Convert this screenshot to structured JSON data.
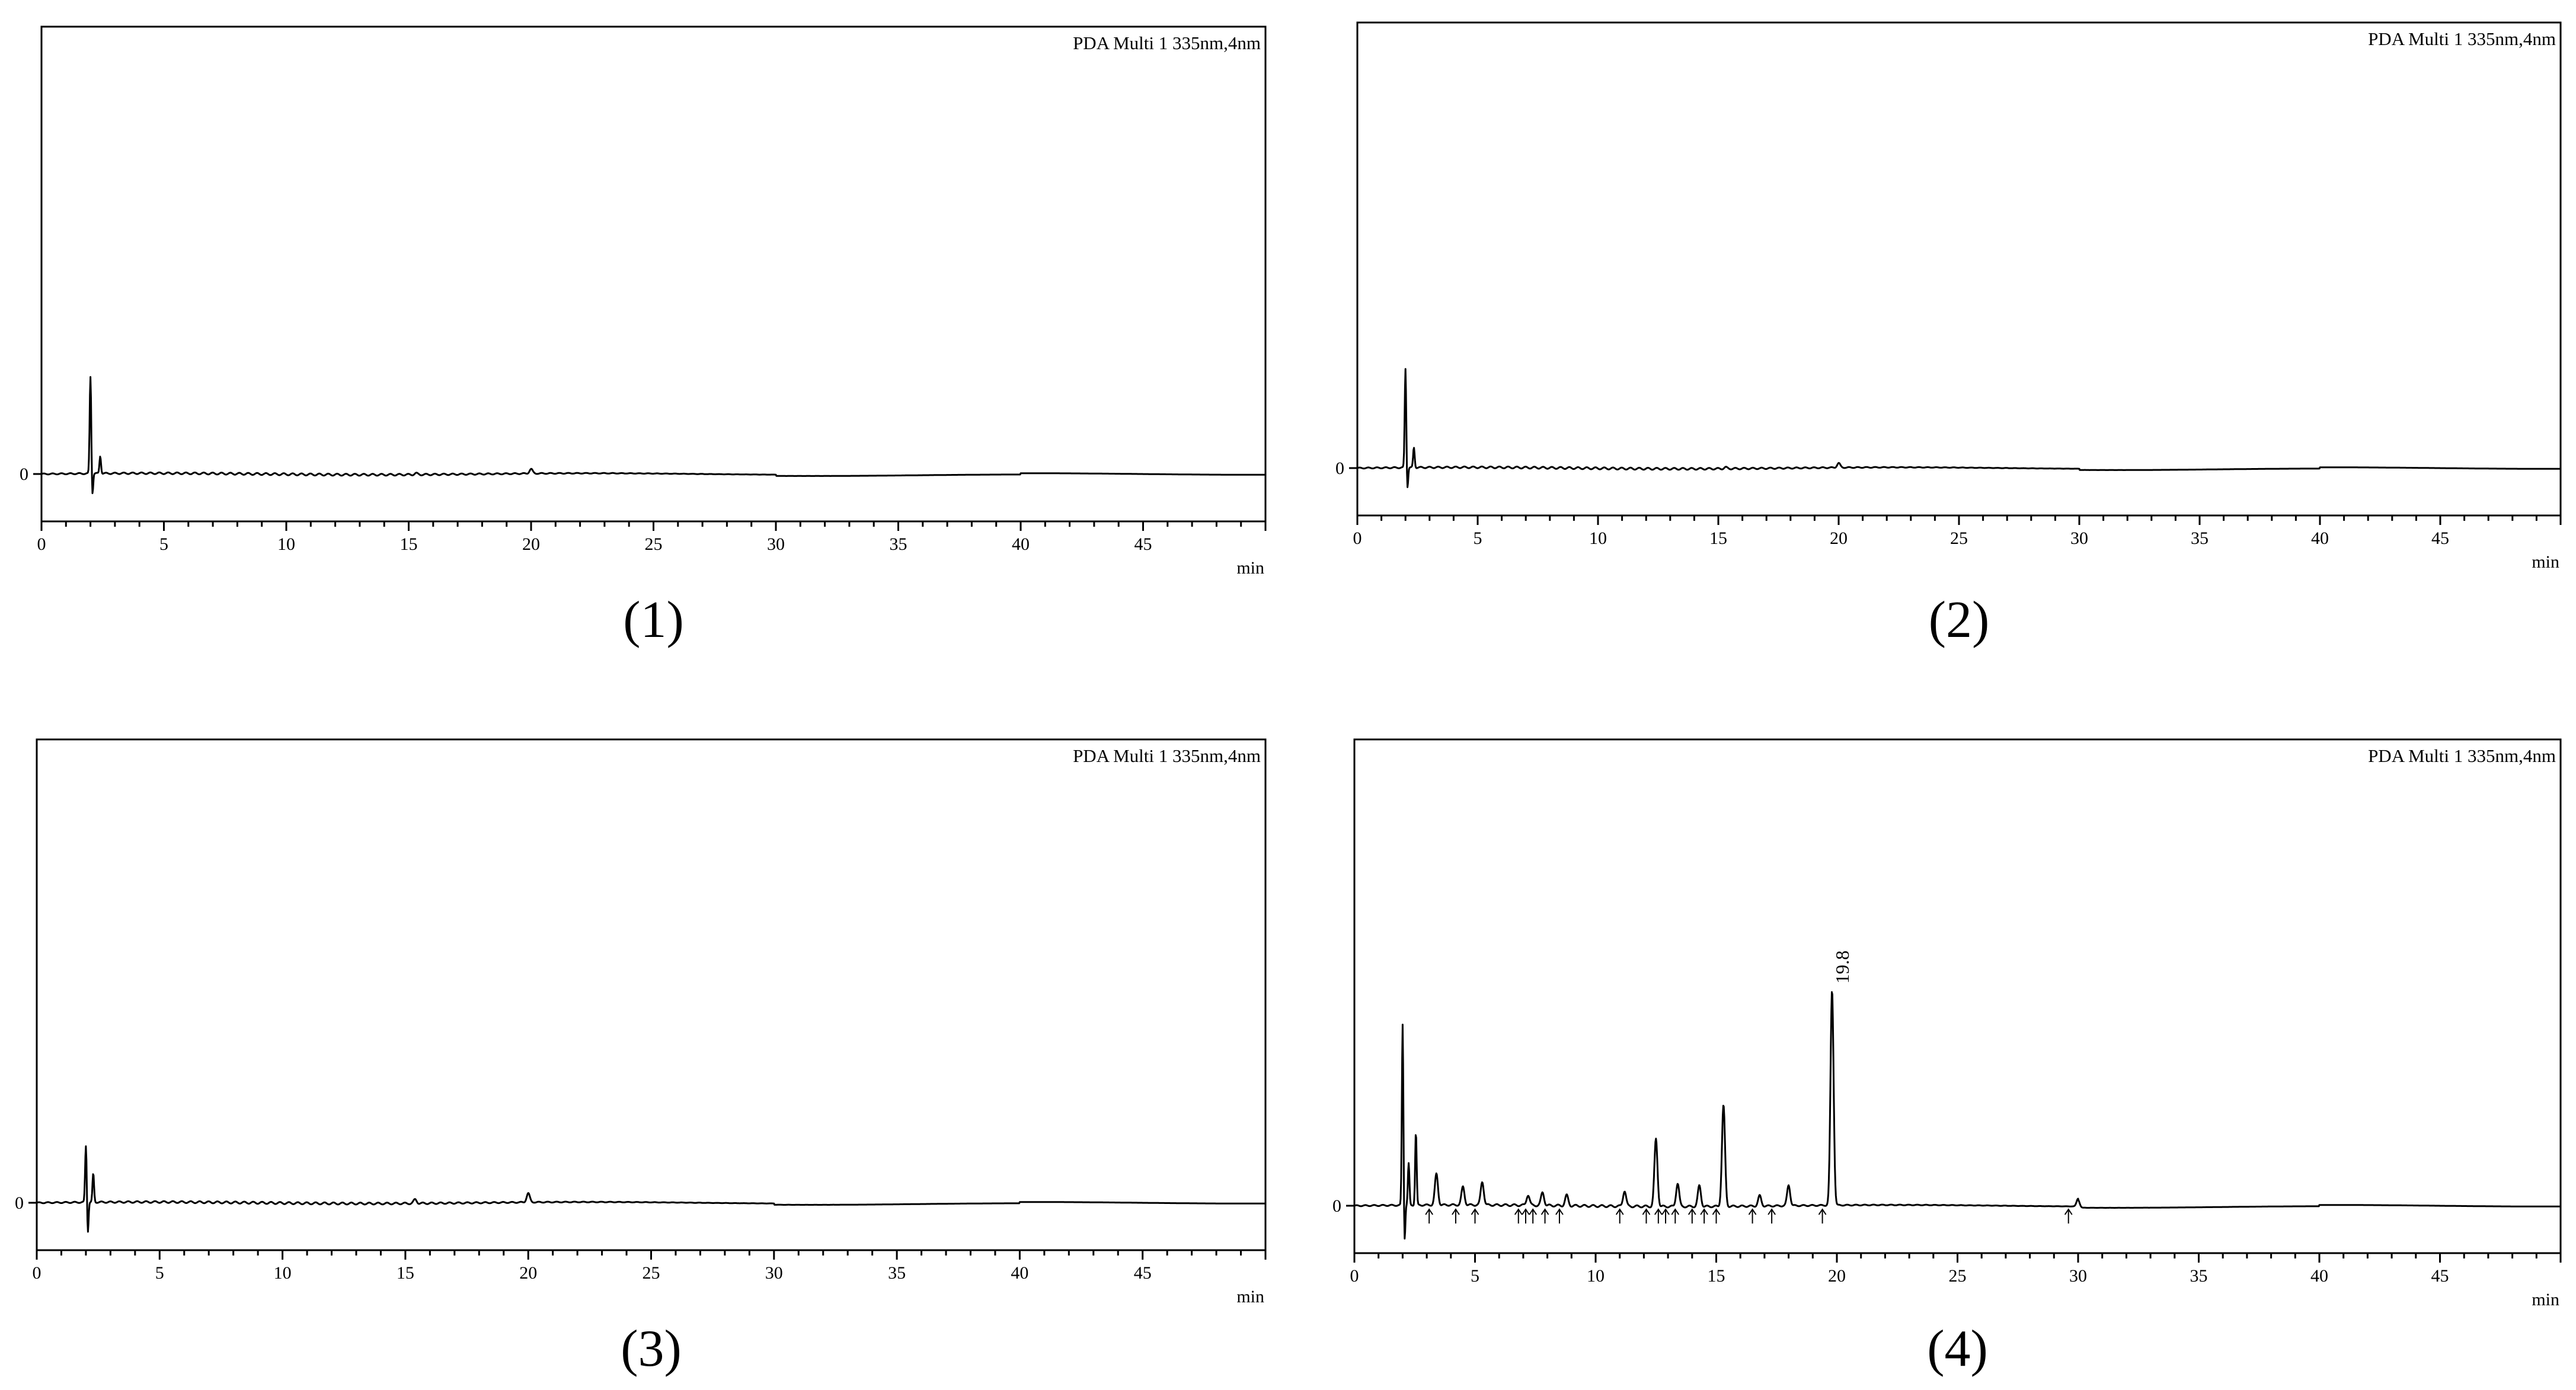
{
  "chart_data": [
    {
      "type": "line",
      "caption": "(1)",
      "detector": "PDA Multi 1 335nm,4nm",
      "xlabel": "min",
      "xlim": [
        0,
        50
      ],
      "xticks": [
        0,
        5,
        10,
        15,
        20,
        25,
        30,
        35,
        40,
        45
      ],
      "yticks": [
        0
      ],
      "ylim": [
        -1,
        18
      ],
      "grid": false,
      "peaks": [
        {
          "rt": 2.0,
          "height": 3.9,
          "dip": -0.9
        },
        {
          "rt": 2.4,
          "height": 0.7
        },
        {
          "rt": 15.3,
          "height": 0.05
        },
        {
          "rt": 20.0,
          "height": 0.18
        }
      ],
      "peak_labels": [],
      "markers": []
    },
    {
      "type": "line",
      "caption": "(2)",
      "detector": "PDA Multi 1 335nm,4nm",
      "xlabel": "min",
      "xlim": [
        0,
        50
      ],
      "xticks": [
        0,
        5,
        10,
        15,
        20,
        25,
        30,
        35,
        40,
        45
      ],
      "yticks": [
        0
      ],
      "ylim": [
        -1,
        18
      ],
      "grid": false,
      "peaks": [
        {
          "rt": 2.0,
          "height": 4.0,
          "dip": -0.9
        },
        {
          "rt": 2.35,
          "height": 0.8
        },
        {
          "rt": 15.3,
          "height": 0.05
        },
        {
          "rt": 20.0,
          "height": 0.18
        }
      ],
      "peak_labels": [],
      "markers": []
    },
    {
      "type": "line",
      "caption": "(3)",
      "detector": "PDA Multi 1 335nm,4nm",
      "xlabel": "min",
      "xlim": [
        0,
        50
      ],
      "xticks": [
        0,
        5,
        10,
        15,
        20,
        25,
        30,
        35,
        40,
        45
      ],
      "yticks": [
        0
      ],
      "ylim": [
        -1,
        18
      ],
      "grid": false,
      "peaks": [
        {
          "rt": 2.0,
          "height": 2.2,
          "dip": -1.2
        },
        {
          "rt": 2.3,
          "height": 1.1
        },
        {
          "rt": 15.4,
          "height": 0.15
        },
        {
          "rt": 20.0,
          "height": 0.35
        }
      ],
      "peak_labels": [],
      "markers": []
    },
    {
      "type": "line",
      "caption": "(4)",
      "detector": "PDA Multi 1 335nm,4nm",
      "xlabel": "min",
      "xlim": [
        0,
        50
      ],
      "xticks": [
        0,
        5,
        10,
        15,
        20,
        25,
        30,
        35,
        40,
        45
      ],
      "yticks": [
        0
      ],
      "ylim": [
        -1,
        18
      ],
      "grid": false,
      "peaks": [
        {
          "rt": 2.0,
          "height": 7.0,
          "dip": -1.5
        },
        {
          "rt": 2.25,
          "height": 1.6
        },
        {
          "rt": 2.55,
          "height": 2.8
        },
        {
          "rt": 3.4,
          "height": 1.2
        },
        {
          "rt": 4.5,
          "height": 0.7
        },
        {
          "rt": 5.3,
          "height": 0.9
        },
        {
          "rt": 7.2,
          "height": 0.4
        },
        {
          "rt": 7.8,
          "height": 0.5
        },
        {
          "rt": 8.8,
          "height": 0.4
        },
        {
          "rt": 11.2,
          "height": 0.6
        },
        {
          "rt": 12.5,
          "height": 2.6
        },
        {
          "rt": 13.4,
          "height": 0.9
        },
        {
          "rt": 14.3,
          "height": 0.8
        },
        {
          "rt": 15.3,
          "height": 3.9
        },
        {
          "rt": 16.8,
          "height": 0.4
        },
        {
          "rt": 18.0,
          "height": 0.8
        },
        {
          "rt": 19.8,
          "height": 8.3
        },
        {
          "rt": 30.0,
          "height": 0.3
        }
      ],
      "peak_labels": [
        {
          "rt": 19.8,
          "text": "19.8"
        }
      ],
      "markers": [
        3.1,
        4.2,
        5.0,
        6.8,
        7.1,
        7.4,
        7.9,
        8.5,
        11.0,
        12.1,
        12.6,
        12.9,
        13.3,
        14.0,
        14.5,
        15.0,
        16.5,
        17.3,
        19.4,
        29.6
      ]
    }
  ]
}
